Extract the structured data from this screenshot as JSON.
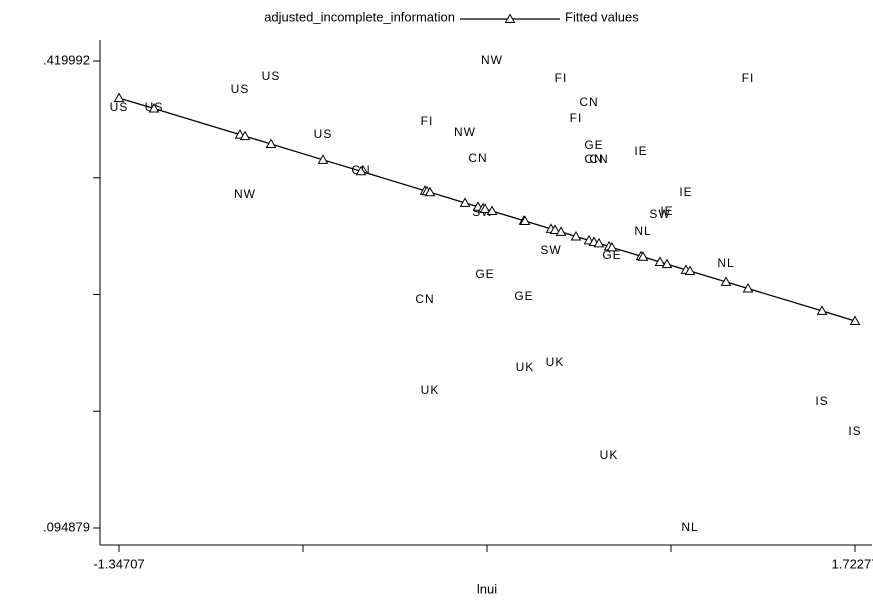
{
  "chart_data": {
    "type": "scatter",
    "x_label": "lnui",
    "legend": "top",
    "xlim": [
      -1.34707,
      1.72277
    ],
    "ylim": [
      0.094879,
      0.419992
    ],
    "xticks": [
      -1.34707,
      1.72277
    ],
    "yticks": [
      {
        "value": 0.094879,
        "label": ".094879"
      },
      {
        "value": 0.419992,
        "label": ".419992"
      }
    ],
    "xticks_minor": [
      -0.57961,
      0.18785,
      0.95531
    ],
    "yticks_minor": [
      0.176157,
      0.257435,
      0.338714
    ],
    "x": [
      -1.34707,
      -1.2011,
      -0.8424,
      -0.8215,
      -0.7131,
      -0.4962,
      -0.3377,
      -0.0708,
      -0.0624,
      -0.0499,
      0.0961,
      0.1503,
      0.1711,
      0.1795,
      0.2087,
      0.3422,
      0.3463,
      0.4548,
      0.4715,
      0.4965,
      0.559,
      0.6133,
      0.6341,
      0.6341,
      0.655,
      0.6967,
      0.7092,
      0.8302,
      0.8385,
      0.9094,
      0.9386,
      1.0179,
      1.0345,
      1.1847,
      1.2765,
      1.5851,
      1.72277
    ],
    "series": [
      {
        "name": "adjusted_incomplete_information",
        "color": "#000000",
        "labels": [
          "US",
          "US",
          "US",
          "NW",
          "US",
          "US",
          "CN",
          "CN",
          "FI",
          "UK",
          "NW",
          "CN",
          "SW",
          "GE",
          "NW",
          "GE",
          "UK",
          "SW",
          "UK",
          "FI",
          "FI",
          "CN",
          "GE",
          "CN",
          "CN",
          "UK",
          "GE",
          "IE",
          "NL",
          "SW",
          "IE",
          "IE",
          "NL",
          "NL",
          "FI",
          "IS",
          "IS"
        ],
        "values": [
          0.3873,
          0.3873,
          0.3998,
          0.3267,
          0.4089,
          0.3685,
          0.3434,
          0.2536,
          0.3775,
          0.1903,
          0.3699,
          0.3518,
          0.3142,
          0.271,
          0.419992,
          0.2557,
          0.2063,
          0.2877,
          0.2097,
          0.4075,
          0.3796,
          0.3907,
          0.3608,
          0.3511,
          0.3511,
          0.145,
          0.2842,
          0.3566,
          0.3009,
          0.3128,
          0.3149,
          0.3281,
          0.0949,
          0.2787,
          0.4075,
          0.1826,
          0.1617
        ]
      },
      {
        "name": "Fitted values",
        "color": "#000000",
        "values": [
          0.3942,
          0.3869,
          0.3687,
          0.3677,
          0.3622,
          0.3512,
          0.3432,
          0.3297,
          0.3293,
          0.3286,
          0.3212,
          0.3185,
          0.3175,
          0.317,
          0.3156,
          0.3088,
          0.3086,
          0.3031,
          0.3023,
          0.301,
          0.2978,
          0.2951,
          0.294,
          0.294,
          0.293,
          0.2909,
          0.2902,
          0.2841,
          0.2837,
          0.2801,
          0.2786,
          0.2746,
          0.2738,
          0.2662,
          0.2616,
          0.246,
          0.239
        ]
      }
    ]
  }
}
